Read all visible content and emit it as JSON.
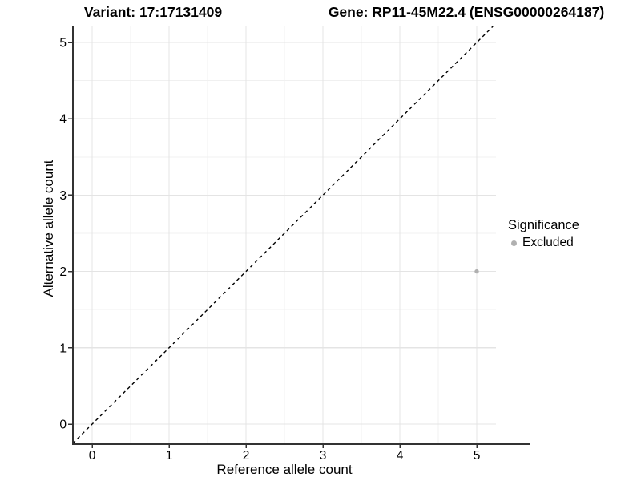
{
  "header": {
    "variant_title": "Variant: 17:17131409",
    "gene_title": "Gene: RP11-45M22.4 (ENSG00000264187)"
  },
  "chart_data": {
    "type": "scatter",
    "xlabel": "Reference allele count",
    "ylabel": "Alternative allele count",
    "xlim": [
      0,
      5
    ],
    "ylim": [
      0,
      5
    ],
    "xticks": [
      0,
      1,
      2,
      3,
      4,
      5
    ],
    "yticks": [
      0,
      1,
      2,
      3,
      4,
      5
    ],
    "grid": {
      "major": true,
      "minor": true
    },
    "points": [
      {
        "x": 5,
        "y": 2,
        "series": "Excluded"
      }
    ],
    "identity_line": {
      "slope": 1,
      "intercept": 0,
      "style": "dashed",
      "color": "#000000"
    },
    "legend": {
      "title": "Significance",
      "position": "right",
      "entries": [
        {
          "label": "Excluded",
          "color": "#b0b0b0"
        }
      ]
    },
    "colors": {
      "axis_line": "#333333",
      "tick_mark": "#333333",
      "tick_label": "#000000",
      "grid_major": "#e4e4e4",
      "grid_minor": "#f0f0f0"
    }
  }
}
